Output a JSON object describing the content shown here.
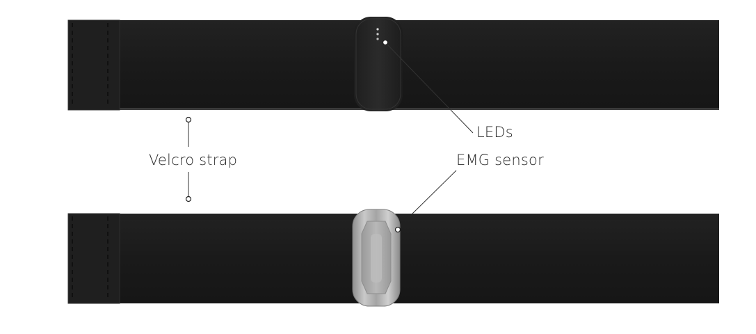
{
  "labels": {
    "leds": "LEDs",
    "emg_sensor": "EMG sensor",
    "velcro_strap": "Velcro strap"
  },
  "colors": {
    "strap": "#1c1c1c",
    "velcro_patch": "#202020",
    "sensor_pod_dark": "#252525",
    "sensor_pod_silver": "#b3b3b3",
    "callout_line": "#333333",
    "background": "#ffffff"
  }
}
